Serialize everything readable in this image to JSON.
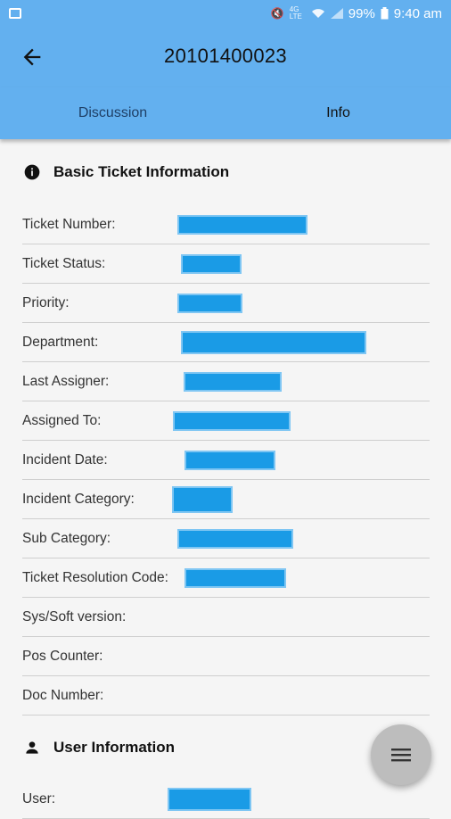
{
  "status_bar": {
    "battery": "99%",
    "time": "9:40 am",
    "network": "4G LTE"
  },
  "app_bar": {
    "title": "20101400023"
  },
  "tabs": [
    {
      "label": "Discussion",
      "active": false
    },
    {
      "label": "Info",
      "active": true
    }
  ],
  "basic_section": {
    "title": "Basic Ticket Information",
    "fields": [
      {
        "label": "Ticket Number:"
      },
      {
        "label": "Ticket Status:"
      },
      {
        "label": "Priority:"
      },
      {
        "label": "Department:"
      },
      {
        "label": "Last Assigner:"
      },
      {
        "label": "Assigned To:"
      },
      {
        "label": "Incident Date:"
      },
      {
        "label": "Incident Category:"
      },
      {
        "label": "Sub Category:"
      },
      {
        "label": "Ticket Resolution Code:"
      },
      {
        "label": "Sys/Soft version:"
      },
      {
        "label": "Pos Counter:"
      },
      {
        "label": "Doc Number:"
      }
    ]
  },
  "user_section": {
    "title": "User Information",
    "fields": [
      {
        "label": "User:"
      }
    ]
  },
  "colors": {
    "app_bar": "#63b0ef",
    "redaction": "#1a9be6",
    "fab": "#bdbdbd"
  },
  "fab": {
    "icon": "menu-icon"
  }
}
